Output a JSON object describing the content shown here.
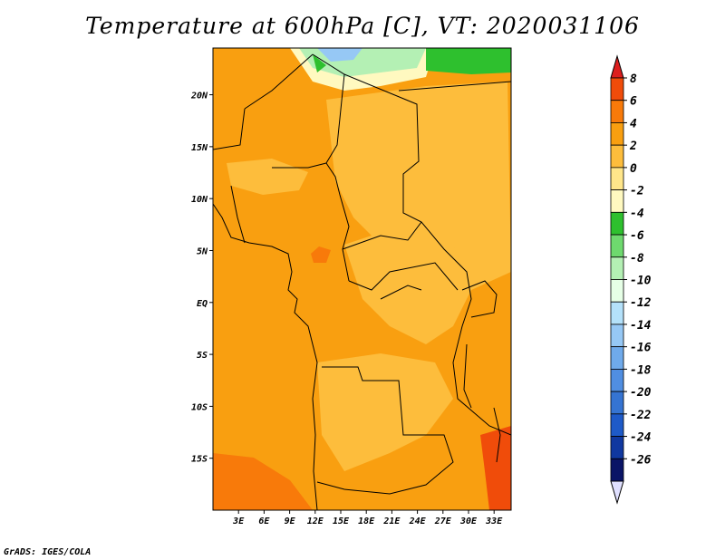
{
  "chart_data": {
    "type": "heatmap",
    "title": "Temperature at 600hPa [C], VT: 2020031106",
    "credit": "GrADS: IGES/COLA",
    "x_ticks": [
      "3E",
      "6E",
      "9E",
      "12E",
      "15E",
      "18E",
      "21E",
      "24E",
      "27E",
      "30E",
      "33E"
    ],
    "y_ticks": [
      "20N",
      "15N",
      "10N",
      "5N",
      "EQ",
      "5S",
      "10S",
      "15S"
    ],
    "lon_range": [
      0,
      35
    ],
    "lat_range": [
      -20,
      24.5
    ],
    "colorbar": {
      "labels": [
        "8",
        "6",
        "4",
        "2",
        "0",
        "-2",
        "-4",
        "-6",
        "-8",
        "-10",
        "-12",
        "-14",
        "-16",
        "-18",
        "-20",
        "-22",
        "-24",
        "-26"
      ],
      "colors": [
        "#dc1e1e",
        "#f04c0a",
        "#f87a0a",
        "#f99f10",
        "#fdbd3c",
        "#ffe68a",
        "#fff9c0",
        "#2ec02e",
        "#6ed96e",
        "#b4f0b4",
        "#e6ffe6",
        "#b4e1fa",
        "#96c8f5",
        "#6faaeb",
        "#508ee1",
        "#3574d2",
        "#1e5ac8",
        "#1038a0",
        "#0a1466",
        "#e0e0ff"
      ],
      "note": "top triangle = above 8, bottom triangle = below -26"
    },
    "field_summary": "mostly 2 to 4 C over central/southern Africa; 4 to 6 C patches in the south-west and south-east; cooler -4 to -14 C in the far north near 24N"
  }
}
